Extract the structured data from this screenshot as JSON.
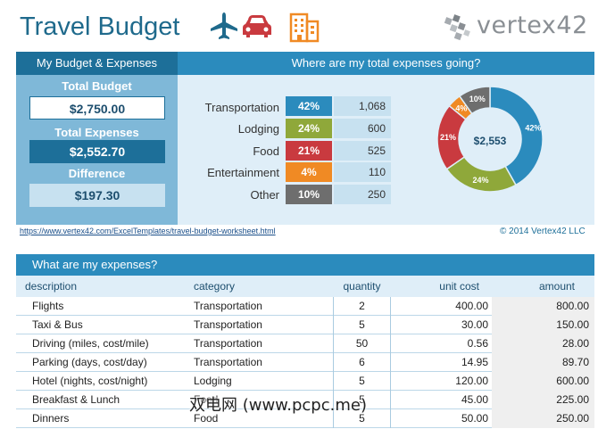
{
  "header": {
    "title": "Travel Budget",
    "logo_text": "vertex42"
  },
  "icons": [
    "airplane-icon",
    "car-icon",
    "building-icon"
  ],
  "summary": {
    "heading": "My Budget & Expenses",
    "total_budget_label": "Total Budget",
    "total_budget_value": "$2,750.00",
    "total_expenses_label": "Total Expenses",
    "total_expenses_value": "$2,552.70",
    "difference_label": "Difference",
    "difference_value": "$197.30"
  },
  "breakdown": {
    "heading": "Where are my total expenses going?",
    "categories": [
      {
        "label": "Transportation",
        "pct": "42%",
        "amount": "1,068",
        "color": "#2b8bbd"
      },
      {
        "label": "Lodging",
        "pct": "24%",
        "amount": "600",
        "color": "#8fa83a"
      },
      {
        "label": "Food",
        "pct": "21%",
        "amount": "525",
        "color": "#c93a3f"
      },
      {
        "label": "Entertainment",
        "pct": "4%",
        "amount": "110",
        "color": "#f08a24"
      },
      {
        "label": "Other",
        "pct": "10%",
        "amount": "250",
        "color": "#6e6e6e"
      }
    ],
    "donut_center": "$2,553"
  },
  "chart_data": {
    "type": "pie",
    "categories": [
      "Transportation",
      "Lodging",
      "Food",
      "Entertainment",
      "Other"
    ],
    "values": [
      1068,
      600,
      525,
      110,
      250
    ],
    "labels": [
      "42%",
      "24%",
      "21%",
      "4%",
      "10%"
    ],
    "center_label": "$2,553",
    "colors": [
      "#2b8bbd",
      "#8fa83a",
      "#c93a3f",
      "#f08a24",
      "#6e6e6e"
    ]
  },
  "footer": {
    "url": "https://www.vertex42.com/ExcelTemplates/travel-budget-worksheet.html",
    "copyright": "© 2014 Vertex42 LLC"
  },
  "expenses": {
    "heading": "What are my expenses?",
    "columns": {
      "description": "description",
      "category": "category",
      "quantity": "quantity",
      "unit_cost": "unit cost",
      "amount": "amount"
    },
    "rows": [
      {
        "description": "Flights",
        "category": "Transportation",
        "quantity": "2",
        "unit_cost": "400.00",
        "amount": "800.00"
      },
      {
        "description": "Taxi & Bus",
        "category": "Transportation",
        "quantity": "5",
        "unit_cost": "30.00",
        "amount": "150.00"
      },
      {
        "description": "Driving (miles, cost/mile)",
        "category": "Transportation",
        "quantity": "50",
        "unit_cost": "0.56",
        "amount": "28.00"
      },
      {
        "description": "Parking (days, cost/day)",
        "category": "Transportation",
        "quantity": "6",
        "unit_cost": "14.95",
        "amount": "89.70"
      },
      {
        "description": "Hotel (nights, cost/night)",
        "category": "Lodging",
        "quantity": "5",
        "unit_cost": "120.00",
        "amount": "600.00"
      },
      {
        "description": "Breakfast & Lunch",
        "category": "Food",
        "quantity": "5",
        "unit_cost": "45.00",
        "amount": "225.00"
      },
      {
        "description": "Dinners",
        "category": "Food",
        "quantity": "5",
        "unit_cost": "50.00",
        "amount": "250.00"
      }
    ]
  },
  "watermark": "双电网 (www.pcpc.me)"
}
